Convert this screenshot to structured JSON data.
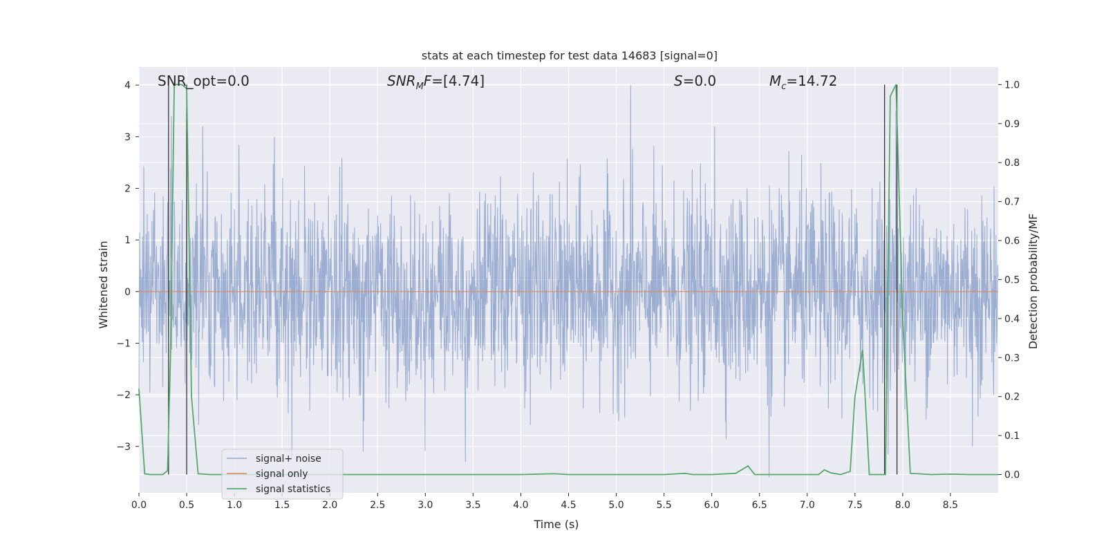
{
  "chart_data": {
    "type": "line",
    "title": "stats at each timestep for test data 14683 [signal=0]",
    "xlabel": "Time (s)",
    "ylabel_left": "Whitened strain",
    "ylabel_right": "Detection probability/MF",
    "xlim": [
      0.0,
      9.0
    ],
    "ylim_left": [
      -3.9,
      4.35
    ],
    "ylim_right": [
      -0.047,
      1.045
    ],
    "x_ticks": [
      "0.0",
      "0.5",
      "1.0",
      "1.5",
      "2.0",
      "2.5",
      "3.0",
      "3.5",
      "4.0",
      "4.5",
      "5.0",
      "5.5",
      "6.0",
      "6.5",
      "7.0",
      "7.5",
      "8.0",
      "8.5"
    ],
    "y_left_ticks": [
      "4",
      "3",
      "2",
      "1",
      "0",
      "−1",
      "−2",
      "−3"
    ],
    "y_right_ticks": [
      "1.0",
      "0.9",
      "0.8",
      "0.7",
      "0.6",
      "0.5",
      "0.4",
      "0.3",
      "0.2",
      "0.1",
      "0.0"
    ],
    "annotations": {
      "snr_opt": "SNR_opt=0.0",
      "snr_mf_base": "SNR",
      "snr_mf_sub": "M",
      "snr_mf_tail": "F",
      "snr_mf_value": "=[4.74]",
      "s_var": "S",
      "s_value": "=0.0",
      "mc_base": "M",
      "mc_sub": "c",
      "mc_value": "=14.72"
    },
    "legend": [
      "signal+ noise",
      "signal only",
      "signal statistics"
    ],
    "colors": {
      "noise": "#4c72b0",
      "signal_only": "#dd8452",
      "stats": "#55a868",
      "vlines": "#333333",
      "plot_bg": "#eaeaf2",
      "grid": "#ffffff"
    },
    "series": [
      {
        "name": "signal+ noise",
        "sample_rate_hz": 256,
        "duration_s": 9.0,
        "peaks": [
          {
            "x": 0.34,
            "y": 3.4
          },
          {
            "x": 0.5,
            "y": 2.5
          },
          {
            "x": 0.67,
            "y": 3.2
          },
          {
            "x": 1.42,
            "y": 3.0
          },
          {
            "x": 5.15,
            "y": 4.0
          },
          {
            "x": 6.03,
            "y": 3.2
          },
          {
            "x": 7.93,
            "y": 3.5
          },
          {
            "x": 2.35,
            "y": -3.1
          },
          {
            "x": 3.42,
            "y": -3.3
          },
          {
            "x": 6.6,
            "y": -3.6
          },
          {
            "x": 8.73,
            "y": -3.0
          }
        ]
      },
      {
        "name": "signal only",
        "values_constant": 0.0
      },
      {
        "name": "signal statistics",
        "x": [
          0.0,
          0.06,
          0.12,
          0.25,
          0.3,
          0.33,
          0.37,
          0.45,
          0.5,
          0.55,
          0.62,
          0.75,
          1.0,
          2.0,
          3.0,
          4.0,
          4.35,
          4.5,
          5.0,
          5.5,
          5.72,
          5.8,
          6.0,
          6.25,
          6.38,
          6.45,
          7.0,
          7.12,
          7.18,
          7.25,
          7.35,
          7.45,
          7.5,
          7.58,
          7.65,
          7.8,
          7.82,
          7.87,
          7.93,
          8.0,
          8.08,
          8.3,
          8.5,
          8.7,
          9.0
        ],
        "values": [
          0.22,
          0.002,
          0.0,
          0.0,
          0.01,
          0.3,
          1.0,
          1.0,
          0.99,
          0.2,
          0.002,
          0.0,
          0.0,
          0.0,
          0.0,
          0.0,
          0.002,
          0.0,
          0.0,
          0.0,
          0.003,
          0.0,
          0.0,
          0.003,
          0.022,
          0.0,
          0.0,
          0.0,
          0.012,
          0.004,
          0.0,
          0.008,
          0.2,
          0.32,
          0.0,
          0.0,
          0.0,
          0.97,
          1.0,
          0.4,
          0.003,
          0.0,
          0.001,
          0.0,
          0.0
        ]
      }
    ],
    "vertical_lines_x": [
      0.31,
      0.5,
      7.81,
      7.94
    ]
  }
}
